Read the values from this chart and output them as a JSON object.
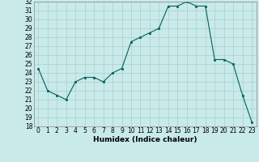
{
  "x": [
    0,
    1,
    2,
    3,
    4,
    5,
    6,
    7,
    8,
    9,
    10,
    11,
    12,
    13,
    14,
    15,
    16,
    17,
    18,
    19,
    20,
    21,
    22,
    23
  ],
  "y": [
    24.5,
    22.0,
    21.5,
    21.0,
    23.0,
    23.5,
    23.5,
    23.0,
    24.0,
    24.5,
    27.5,
    28.0,
    28.5,
    29.0,
    31.5,
    31.5,
    32.0,
    31.5,
    31.5,
    25.5,
    25.5,
    25.0,
    21.5,
    18.5
  ],
  "line_color": "#006060",
  "marker_color": "#006060",
  "bg_color": "#c8eae8",
  "grid_color": "#aacccc",
  "xlabel": "Humidex (Indice chaleur)",
  "ylim": [
    18,
    32
  ],
  "xlim": [
    -0.5,
    23.5
  ],
  "yticks": [
    18,
    19,
    20,
    21,
    22,
    23,
    24,
    25,
    26,
    27,
    28,
    29,
    30,
    31,
    32
  ],
  "xticks": [
    0,
    1,
    2,
    3,
    4,
    5,
    6,
    7,
    8,
    9,
    10,
    11,
    12,
    13,
    14,
    15,
    16,
    17,
    18,
    19,
    20,
    21,
    22,
    23
  ],
  "label_fontsize": 6.5,
  "tick_fontsize": 5.5
}
